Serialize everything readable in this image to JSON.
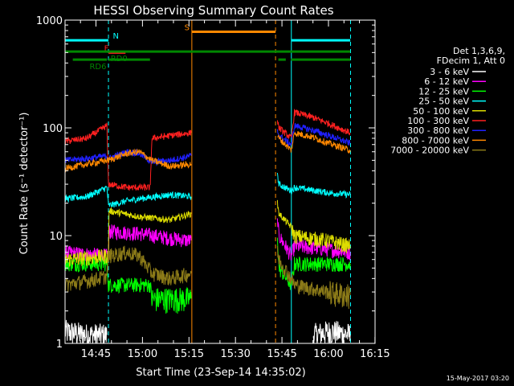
{
  "chart_data": {
    "type": "line",
    "title": "HESSI Observing Summary Count Rates",
    "xlabel": "Start Time (23-Sep-14 14:35:02)",
    "ylabel": "Count Rate (s⁻¹ detector⁻¹)",
    "x_units": "minutes after 14:35:02",
    "xlim": [
      0,
      100
    ],
    "ylim": [
      1,
      1000
    ],
    "y_scale": "log",
    "x_ticks": [
      {
        "x": 9.97,
        "label": "14:45"
      },
      {
        "x": 24.97,
        "label": "15:00"
      },
      {
        "x": 39.97,
        "label": "15:15"
      },
      {
        "x": 54.97,
        "label": "15:30"
      },
      {
        "x": 69.97,
        "label": "15:45"
      },
      {
        "x": 84.97,
        "label": "16:00"
      },
      {
        "x": 99.97,
        "label": "16:15"
      }
    ],
    "y_ticks": [
      {
        "y": 1,
        "label": "1"
      },
      {
        "y": 10,
        "label": "10"
      },
      {
        "y": 100,
        "label": "100"
      },
      {
        "y": 1000,
        "label": "1000"
      }
    ],
    "legend": {
      "position": "right",
      "header": [
        "Det 1,3,6,9,",
        "FDecim 1, Att 0"
      ]
    },
    "series": [
      {
        "name": "3 - 6 keV",
        "color": "#ffffff",
        "segments": [
          {
            "x": [
              0,
              7,
              13.5
            ],
            "y": [
              1.3,
              1.2,
              1.2
            ]
          },
          {
            "x": [
              80,
              86,
              92
            ],
            "y": [
              1.2,
              1.3,
              1.2
            ]
          }
        ]
      },
      {
        "name": "6 - 12 keV",
        "color": "#ff00ff",
        "segments": [
          {
            "x": [
              0,
              14,
              14.2,
              24,
              34,
              40.7
            ],
            "y": [
              7,
              6.5,
              11,
              10.5,
              9.5,
              9
            ]
          },
          {
            "x": [
              68.5,
              69,
              73,
              74,
              85,
              92
            ],
            "y": [
              14,
              10,
              6.5,
              8,
              7.5,
              7
            ]
          }
        ]
      },
      {
        "name": "12 - 25 keV",
        "color": "#00ff00",
        "segments": [
          {
            "x": [
              0,
              13.5,
              14,
              27.5,
              28,
              34,
              40.7
            ],
            "y": [
              5.5,
              5.5,
              3.5,
              3.5,
              2.6,
              2.6,
              2.6
            ]
          },
          {
            "x": [
              68.5,
              69,
              73,
              74,
              85,
              92
            ],
            "y": [
              10,
              5,
              3.5,
              5.5,
              5.5,
              5.5
            ]
          }
        ]
      },
      {
        "name": "25 - 50 keV",
        "color": "#00ffff",
        "segments": [
          {
            "x": [
              0,
              7,
              13.5,
              14,
              20,
              24,
              34,
              40.7
            ],
            "y": [
              22,
              23,
              28,
              19,
              21,
              22,
              24,
              23
            ]
          },
          {
            "x": [
              68.5,
              69,
              73,
              74,
              85,
              92
            ],
            "y": [
              36,
              30,
              26,
              28,
              25,
              24
            ]
          }
        ]
      },
      {
        "name": "50 - 100 keV",
        "color": "#dddd00",
        "segments": [
          {
            "x": [
              0,
              14,
              14.2,
              24,
              34,
              40.7
            ],
            "y": [
              6,
              6.5,
              17,
              15,
              14,
              16
            ]
          },
          {
            "x": [
              68.5,
              69,
              73,
              74,
              85,
              92
            ],
            "y": [
              20,
              16,
              12,
              10,
              9,
              8
            ]
          }
        ]
      },
      {
        "name": "100 - 300 keV",
        "color": "#ff2020",
        "segments": [
          {
            "x": [
              0,
              7,
              13.5,
              14,
              20,
              27.5,
              28,
              34,
              40.7
            ],
            "y": [
              75,
              80,
              105,
              30,
              28,
              28,
              80,
              85,
              90
            ]
          },
          {
            "x": [
              68.5,
              69,
              73,
              74,
              80,
              85,
              92
            ],
            "y": [
              120,
              100,
              80,
              140,
              125,
              110,
              90
            ]
          }
        ]
      },
      {
        "name": "300 - 800 keV",
        "color": "#2020ff",
        "segments": [
          {
            "x": [
              0,
              7,
              13.5,
              14,
              20,
              24,
              28,
              34,
              40.7
            ],
            "y": [
              50,
              52,
              55,
              52,
              60,
              58,
              48,
              50,
              55
            ]
          },
          {
            "x": [
              68.5,
              69,
              73,
              74,
              80,
              85,
              92
            ],
            "y": [
              95,
              85,
              70,
              105,
              95,
              85,
              72
            ]
          }
        ]
      },
      {
        "name": "800 - 7000 keV",
        "color": "#ff8800",
        "segments": [
          {
            "x": [
              0,
              7,
              13.5,
              14,
              20,
              24,
              28,
              34,
              40.7
            ],
            "y": [
              42,
              46,
              50,
              50,
              58,
              60,
              50,
              44,
              46
            ]
          },
          {
            "x": [
              68.5,
              69,
              73,
              74,
              80,
              85,
              92
            ],
            "y": [
              85,
              80,
              62,
              90,
              82,
              72,
              62
            ]
          }
        ]
      },
      {
        "name": "7000 - 20000 keV",
        "color": "#8b7a18",
        "segments": [
          {
            "x": [
              0,
              7,
              13.5,
              14,
              20,
              24,
              28,
              34,
              40.7
            ],
            "y": [
              3.5,
              3.8,
              4.2,
              6.5,
              7,
              6.5,
              4.5,
              4,
              4.5
            ]
          },
          {
            "x": [
              68.5,
              69,
              73,
              74,
              85,
              92
            ],
            "y": [
              7,
              6,
              4,
              3.5,
              3,
              2.8
            ]
          }
        ]
      }
    ],
    "verticals": [
      {
        "x": 0,
        "color": "#00ffff",
        "style": "solid"
      },
      {
        "x": 14.0,
        "color": "#00ffff",
        "style": "dashed"
      },
      {
        "x": 40.9,
        "color": "#ff8800",
        "style": "solid"
      },
      {
        "x": 67.9,
        "color": "#ff8800",
        "style": "dashed"
      },
      {
        "x": 73.0,
        "color": "#00ffff",
        "style": "solid"
      },
      {
        "x": 92.1,
        "color": "#00ffff",
        "style": "dashed"
      }
    ],
    "flags": [
      {
        "label": "N",
        "color": "#00ffff",
        "y": 650,
        "segments": [
          [
            0,
            14
          ],
          [
            73,
            92
          ]
        ],
        "label_x": 15.4
      },
      {
        "label": "S",
        "color": "#ff8800",
        "y": 780,
        "segments": [
          [
            40.9,
            67.9
          ]
        ],
        "label_x": 38.5
      },
      {
        "label": "F",
        "color": "#ff2020",
        "y": 500,
        "segments": [
          [
            14,
            19.5
          ]
        ],
        "label_x": 12.6
      },
      {
        "label": "RD0",
        "color": "#008800",
        "y": 510,
        "segments": [
          [
            0,
            92
          ]
        ],
        "label_x": 14.7
      },
      {
        "label": "RD6",
        "color": "#008800",
        "y": 430,
        "segments": [
          [
            2.5,
            13.5
          ],
          [
            14,
            27.4
          ],
          [
            68.8,
            71.2
          ],
          [
            72.9,
            92
          ]
        ],
        "label_x": 7.9
      }
    ]
  },
  "footer": {
    "timestamp": "15-May-2017 03:20"
  }
}
